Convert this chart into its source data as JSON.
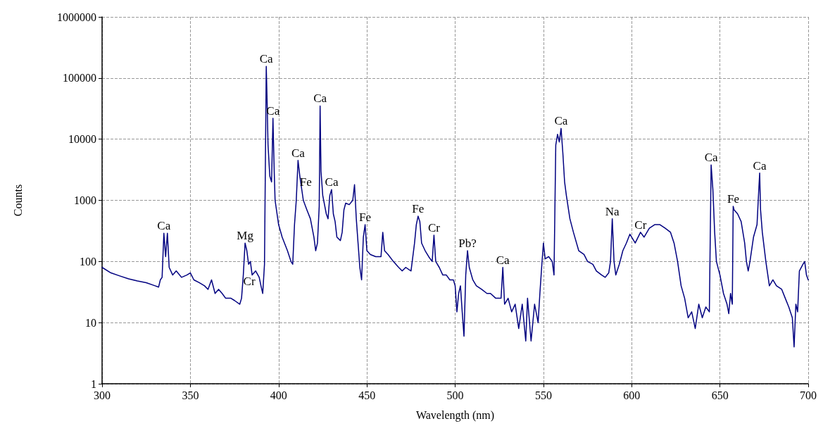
{
  "chart_data": {
    "type": "line",
    "xlabel": "Wavelength (nm)",
    "ylabel": "Counts",
    "log": "y",
    "grid": true,
    "marker": "none",
    "line_style": "solid",
    "xlim": [
      300,
      700
    ],
    "xticks": [
      300,
      350,
      400,
      450,
      500,
      550,
      600,
      650,
      700
    ],
    "ylim": [
      1,
      1000000
    ],
    "yticks": [
      1,
      10,
      100,
      1000,
      10000,
      100000,
      1000000
    ],
    "series": [
      {
        "color": "#000080",
        "x": [
          300,
          305,
          310,
          315,
          320,
          325,
          330,
          332,
          333,
          334,
          335,
          336,
          337,
          338,
          340,
          342,
          345,
          348,
          350,
          352,
          355,
          358,
          360,
          362,
          364,
          366,
          368,
          370,
          373,
          375,
          378,
          379,
          380,
          381,
          382,
          383,
          384,
          385,
          387,
          389,
          390,
          391,
          392,
          393,
          393.5,
          394,
          395,
          396,
          396.8,
          397.5,
          398,
          400,
          402,
          405,
          407,
          408,
          409,
          410,
          411,
          412,
          414,
          416,
          418,
          420,
          421,
          422,
          423,
          423.5,
          424,
          425,
          427,
          428,
          429,
          430,
          431,
          432,
          433,
          435,
          436,
          437,
          438,
          440,
          442,
          443,
          444,
          445,
          446,
          447,
          448,
          449,
          450,
          452,
          455,
          458,
          459,
          460,
          462,
          465,
          468,
          470,
          472,
          475,
          477,
          478,
          479,
          480,
          481,
          483,
          485,
          487,
          488,
          489,
          491,
          493,
          495,
          497,
          499,
          500,
          501,
          502,
          503,
          504,
          505,
          506,
          507,
          508,
          510,
          512,
          515,
          518,
          520,
          523,
          526,
          527,
          528,
          530,
          532,
          534,
          536,
          538,
          540,
          541,
          543,
          545,
          547,
          548,
          549,
          550,
          551,
          553,
          555,
          556,
          557,
          558,
          559,
          560,
          561,
          562,
          563,
          565,
          567,
          570,
          573,
          575,
          578,
          580,
          583,
          585,
          587,
          588,
          589,
          590,
          591,
          593,
          595,
          597,
          599,
          600,
          602,
          605,
          607,
          610,
          613,
          616,
          619,
          622,
          624,
          626,
          628,
          630,
          632,
          634,
          636,
          638,
          640,
          642,
          644,
          645,
          646,
          647,
          648,
          650,
          652,
          654,
          655,
          656,
          657,
          657.5,
          658,
          660,
          662,
          664,
          665,
          666,
          667,
          669,
          671,
          672,
          672.5,
          673,
          674,
          676,
          678,
          680,
          682,
          685,
          687,
          689,
          691,
          692,
          693,
          694,
          695,
          697,
          698,
          699,
          700
        ],
        "values": [
          80,
          65,
          58,
          52,
          48,
          45,
          40,
          38,
          50,
          55,
          290,
          120,
          290,
          80,
          60,
          70,
          55,
          60,
          65,
          50,
          45,
          40,
          35,
          50,
          30,
          35,
          30,
          25,
          25,
          23,
          20,
          25,
          60,
          200,
          150,
          90,
          100,
          60,
          70,
          55,
          40,
          30,
          90,
          155000,
          40000,
          8000,
          2500,
          2000,
          22000,
          3000,
          1000,
          400,
          250,
          150,
          100,
          90,
          400,
          1000,
          4500,
          2500,
          1000,
          700,
          500,
          250,
          150,
          200,
          800,
          35000,
          3000,
          1200,
          600,
          500,
          1200,
          1500,
          600,
          450,
          250,
          220,
          300,
          700,
          900,
          850,
          1000,
          1800,
          500,
          200,
          80,
          50,
          250,
          400,
          150,
          130,
          120,
          120,
          300,
          150,
          130,
          100,
          80,
          70,
          80,
          70,
          200,
          400,
          550,
          450,
          200,
          150,
          120,
          100,
          270,
          100,
          80,
          60,
          60,
          50,
          50,
          40,
          15,
          30,
          40,
          15,
          6,
          60,
          150,
          80,
          50,
          40,
          35,
          30,
          30,
          25,
          25,
          80,
          20,
          25,
          15,
          20,
          8,
          20,
          5,
          25,
          5,
          20,
          10,
          30,
          80,
          200,
          110,
          120,
          100,
          60,
          8000,
          12000,
          9000,
          15000,
          6000,
          2000,
          1200,
          500,
          300,
          150,
          130,
          100,
          90,
          70,
          60,
          55,
          65,
          100,
          500,
          100,
          60,
          90,
          150,
          200,
          280,
          250,
          200,
          300,
          250,
          350,
          400,
          400,
          350,
          300,
          200,
          100,
          40,
          25,
          12,
          15,
          8,
          20,
          12,
          18,
          15,
          3800,
          1500,
          300,
          100,
          60,
          30,
          20,
          14,
          30,
          20,
          800,
          700,
          600,
          450,
          200,
          100,
          70,
          100,
          250,
          400,
          1500,
          2800,
          700,
          300,
          100,
          40,
          50,
          40,
          35,
          25,
          18,
          12,
          4,
          20,
          15,
          70,
          90,
          100,
          60,
          50
        ]
      }
    ],
    "annotations": [
      {
        "text": "Ca",
        "x": 335,
        "y": 290
      },
      {
        "text": "Cr",
        "x": 380,
        "y": 60
      },
      {
        "text": "Mg",
        "x": 381,
        "y": 200
      },
      {
        "text": "Ca",
        "x": 393,
        "y": 155000
      },
      {
        "text": "Ca",
        "x": 396.8,
        "y": 22000
      },
      {
        "text": "Ca",
        "x": 411,
        "y": 4500
      },
      {
        "text": "Fe",
        "x": 412,
        "y": 2500
      },
      {
        "text": "Ca",
        "x": 430,
        "y": 1500
      },
      {
        "text": "Ca",
        "x": 423.5,
        "y": 35000
      },
      {
        "text": "Fe",
        "x": 449,
        "y": 400
      },
      {
        "text": "Fe",
        "x": 479,
        "y": 550
      },
      {
        "text": "Cr",
        "x": 488,
        "y": 270
      },
      {
        "text": "Pb?",
        "x": 507,
        "y": 150
      },
      {
        "text": "Ca",
        "x": 527,
        "y": 80
      },
      {
        "text": "Ca",
        "x": 560,
        "y": 15000
      },
      {
        "text": "Na",
        "x": 589,
        "y": 500
      },
      {
        "text": "Cr",
        "x": 605,
        "y": 300
      },
      {
        "text": "Ca",
        "x": 645,
        "y": 3800
      },
      {
        "text": "Fe",
        "x": 657.5,
        "y": 800
      },
      {
        "text": "Ca",
        "x": 672.5,
        "y": 2800
      }
    ]
  }
}
